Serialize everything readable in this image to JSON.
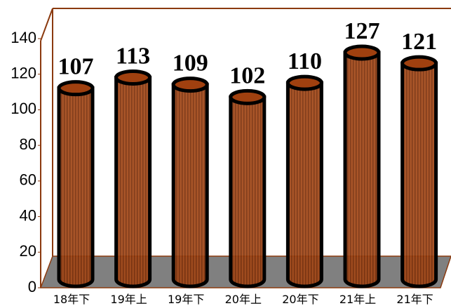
{
  "chart_data": {
    "type": "bar",
    "categories": [
      "18年下",
      "19年上",
      "19年下",
      "20年上",
      "20年下",
      "21年上",
      "21年下"
    ],
    "values": [
      107,
      113,
      109,
      102,
      110,
      127,
      121
    ],
    "color": "#a0400f",
    "ylim": [
      0,
      140
    ],
    "yticks": [
      0,
      20,
      40,
      60,
      80,
      100,
      120,
      140
    ]
  }
}
